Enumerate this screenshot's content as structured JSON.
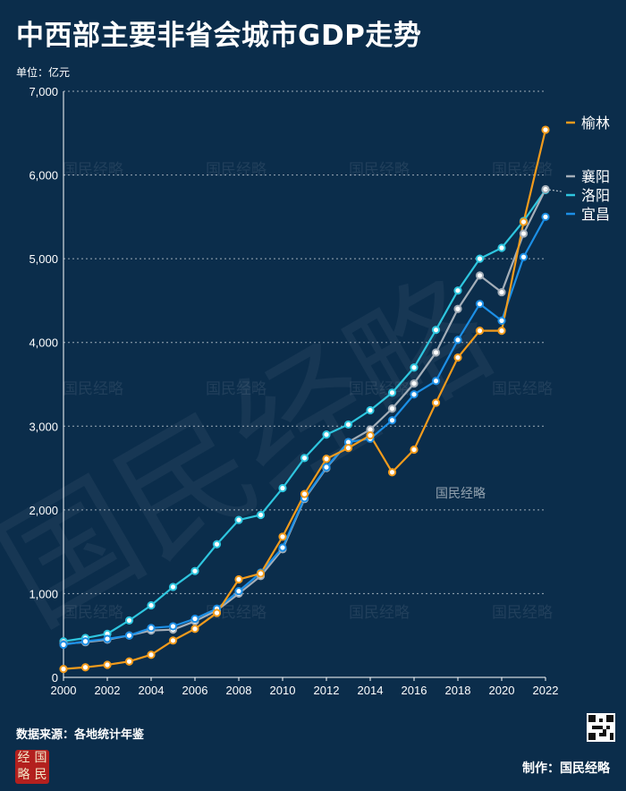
{
  "title": "中西部主要非省会城市GDP走势",
  "unit": "单位：亿元",
  "source": "数据来源：各地统计年鉴",
  "credit": "制作：国民经略",
  "brand_seal": [
    "经",
    "国",
    "略",
    "民"
  ],
  "watermark_text": "国民经略",
  "chart_data": {
    "type": "line",
    "title": "中西部主要非省会城市GDP走势",
    "ylabel": "单位：亿元",
    "xlabel": "",
    "ylim": [
      0,
      7000
    ],
    "xlim": [
      2000,
      2022
    ],
    "yticks": [
      0,
      1000,
      2000,
      3000,
      4000,
      5000,
      6000,
      7000
    ],
    "ytick_labels": [
      "0",
      "1,000",
      "2,000",
      "3,000",
      "4,000",
      "5,000",
      "6,000",
      "7,000"
    ],
    "xticks": [
      2000,
      2002,
      2004,
      2006,
      2008,
      2010,
      2012,
      2014,
      2016,
      2018,
      2020,
      2022
    ],
    "grid": "horizontal dotted",
    "x": [
      2000,
      2001,
      2002,
      2003,
      2004,
      2005,
      2006,
      2007,
      2008,
      2009,
      2010,
      2011,
      2012,
      2013,
      2014,
      2015,
      2016,
      2017,
      2018,
      2019,
      2020,
      2021,
      2022
    ],
    "series": [
      {
        "name": "洛阳",
        "color": "#2ec6df",
        "values": [
          430,
          470,
          520,
          680,
          860,
          1080,
          1270,
          1590,
          1880,
          1940,
          2260,
          2620,
          2900,
          3020,
          3190,
          3400,
          3700,
          4150,
          4620,
          5000,
          5130,
          5450,
          5820
        ]
      },
      {
        "name": "襄阳",
        "color": "#a4aeb8",
        "values": [
          400,
          420,
          450,
          500,
          560,
          570,
          670,
          800,
          1000,
          1210,
          1530,
          2130,
          2500,
          2810,
          2960,
          3210,
          3510,
          3880,
          4400,
          4800,
          4600,
          5300,
          5830
        ]
      },
      {
        "name": "宜昌",
        "color": "#1c8fe6",
        "values": [
          390,
          430,
          460,
          500,
          590,
          610,
          700,
          820,
          1030,
          1250,
          1550,
          2140,
          2510,
          2810,
          2850,
          3070,
          3380,
          3540,
          4030,
          4460,
          4260,
          5020,
          5500
        ]
      },
      {
        "name": "榆林",
        "color": "#f29b1c",
        "values": [
          100,
          120,
          150,
          190,
          270,
          440,
          580,
          770,
          1170,
          1240,
          1680,
          2190,
          2610,
          2740,
          2890,
          2450,
          2720,
          3280,
          3820,
          4140,
          4140,
          5440,
          6540
        ]
      }
    ],
    "legend": [
      "榆林",
      "襄阳",
      "洛阳",
      "宜昌"
    ],
    "legend_placement": "right"
  }
}
